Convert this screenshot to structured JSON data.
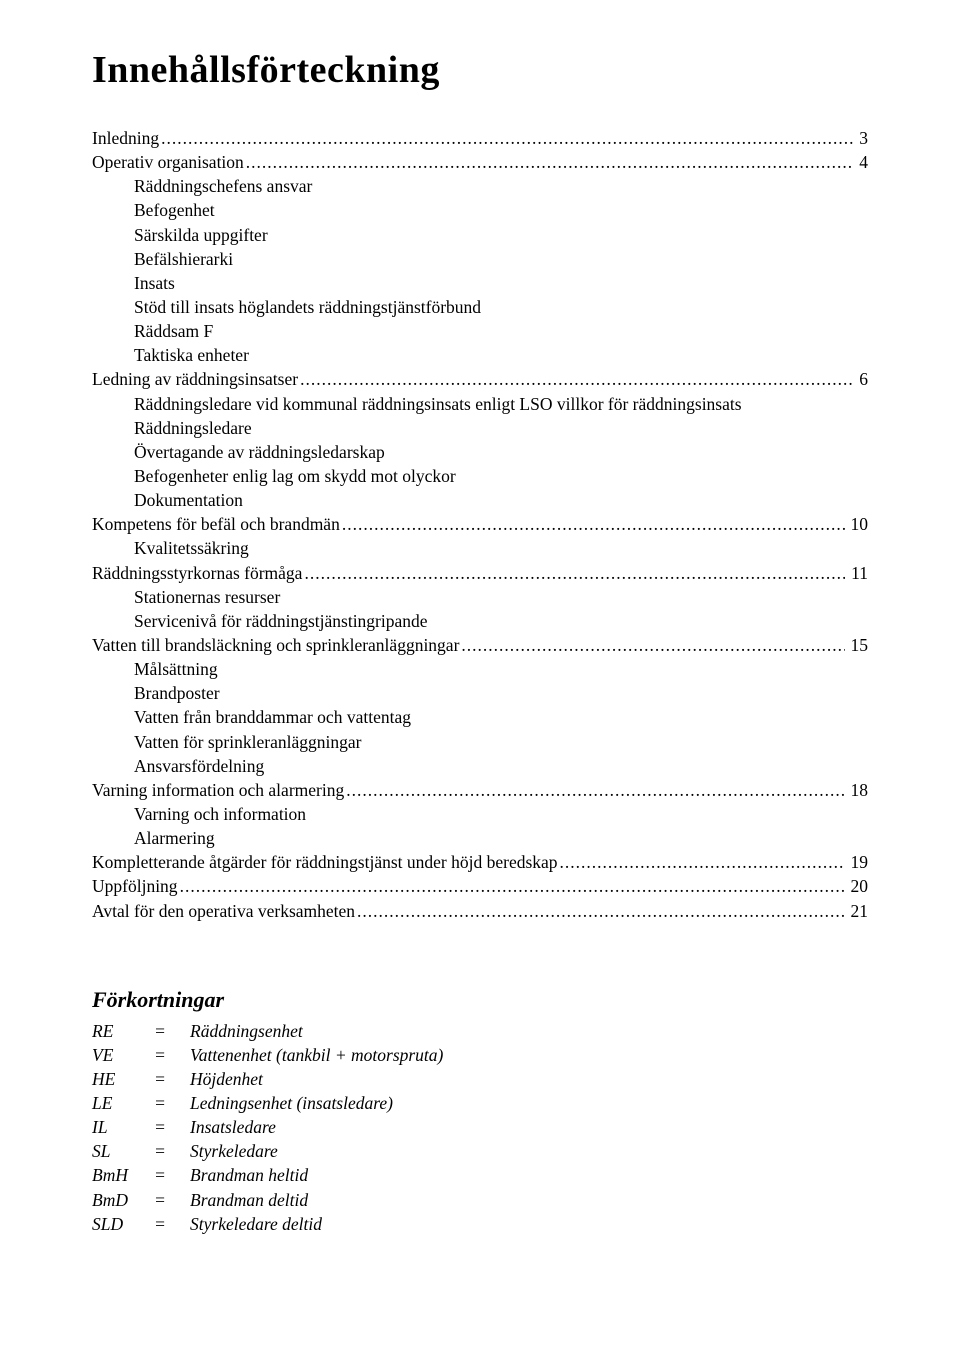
{
  "title": "Innehållsförteckning",
  "toc": [
    {
      "type": "entry",
      "indent": 0,
      "label": "Inledning",
      "page": "3"
    },
    {
      "type": "entry",
      "indent": 0,
      "label": "Operativ organisation",
      "page": "4"
    },
    {
      "type": "sub",
      "label": "Räddningschefens ansvar"
    },
    {
      "type": "sub",
      "label": "Befogenhet"
    },
    {
      "type": "sub",
      "label": "Särskilda uppgifter"
    },
    {
      "type": "sub",
      "label": "Befälshierarki"
    },
    {
      "type": "sub",
      "label": "Insats"
    },
    {
      "type": "sub",
      "label": "Stöd till insats höglandets räddningstjänstförbund"
    },
    {
      "type": "sub",
      "label": "Räddsam F"
    },
    {
      "type": "sub",
      "label": "Taktiska enheter"
    },
    {
      "type": "entry",
      "indent": 0,
      "label": "Ledning av räddningsinsatser",
      "page": "6"
    },
    {
      "type": "sub",
      "label": "Räddningsledare vid kommunal räddningsinsats enligt LSO villkor för räddningsinsats"
    },
    {
      "type": "sub",
      "label": "Räddningsledare"
    },
    {
      "type": "sub",
      "label": "Övertagande av räddningsledarskap"
    },
    {
      "type": "sub",
      "label": "Befogenheter enlig lag om skydd mot olyckor"
    },
    {
      "type": "sub",
      "label": "Dokumentation"
    },
    {
      "type": "entry",
      "indent": 0,
      "label": "Kompetens för befäl och brandmän",
      "page": "10"
    },
    {
      "type": "sub",
      "label": "Kvalitetssäkring"
    },
    {
      "type": "entry",
      "indent": 0,
      "label": "Räddningsstyrkornas förmåga",
      "page": "11"
    },
    {
      "type": "sub",
      "label": "Stationernas resurser"
    },
    {
      "type": "sub",
      "label": "Servicenivå för räddningstjänstingripande"
    },
    {
      "type": "entry",
      "indent": 0,
      "label": "Vatten till brandsläckning och sprinkleranläggningar",
      "page": "15"
    },
    {
      "type": "sub",
      "label": "Målsättning"
    },
    {
      "type": "sub",
      "label": "Brandposter"
    },
    {
      "type": "sub",
      "label": "Vatten från branddammar och vattentag"
    },
    {
      "type": "sub",
      "label": "Vatten för sprinkleranläggningar"
    },
    {
      "type": "sub",
      "label": "Ansvarsfördelning"
    },
    {
      "type": "entry",
      "indent": 0,
      "label": "Varning information och alarmering",
      "page": "18"
    },
    {
      "type": "sub",
      "label": "Varning och information"
    },
    {
      "type": "sub",
      "label": "Alarmering"
    },
    {
      "type": "entry",
      "indent": 0,
      "label": "Kompletterande åtgärder för räddningstjänst under höjd beredskap",
      "page": "19"
    },
    {
      "type": "entry",
      "indent": 0,
      "label": "Uppföljning",
      "page": "20"
    },
    {
      "type": "entry",
      "indent": 0,
      "label": "Avtal för den operativa verksamheten",
      "page": "21"
    }
  ],
  "abbr_title": "Förkortningar",
  "abbreviations": [
    {
      "key": "RE",
      "val": "Räddningsenhet"
    },
    {
      "key": "VE",
      "val": "Vattenenhet (tankbil + motorspruta)"
    },
    {
      "key": "HE",
      "val": "Höjdenhet"
    },
    {
      "key": "LE",
      "val": "Ledningsenhet (insatsledare)"
    },
    {
      "key": "IL",
      "val": "Insatsledare"
    },
    {
      "key": "SL",
      "val": "Styrkeledare"
    },
    {
      "key": "BmH",
      "val": "Brandman heltid"
    },
    {
      "key": "BmD",
      "val": "Brandman deltid"
    },
    {
      "key": "SLD",
      "val": "Styrkeledare deltid"
    }
  ]
}
